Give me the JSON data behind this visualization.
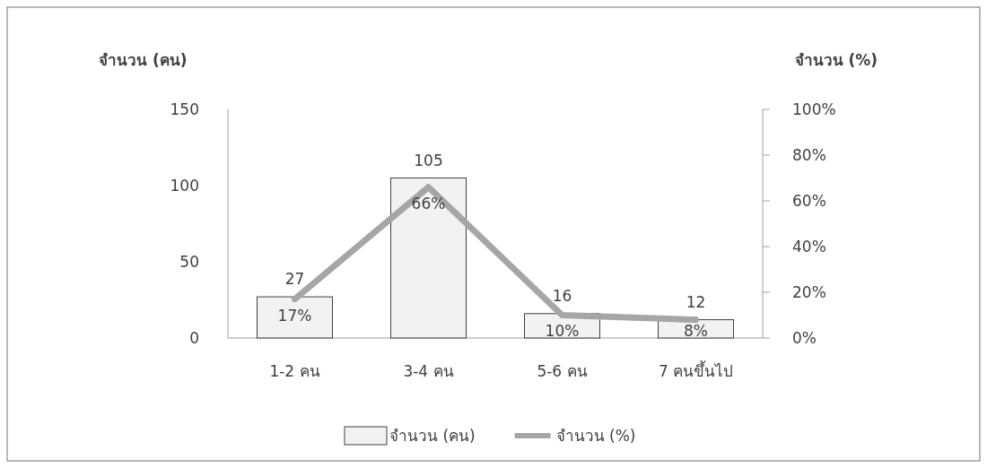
{
  "chart_data": {
    "type": "bar",
    "categories": [
      "1-2 คน",
      "3-4 คน",
      "5-6 คน",
      "7 คนขึ้นไป"
    ],
    "ylabel": "จำนวน (คน)",
    "y2label": "จำนวน (%)",
    "ylim": [
      0,
      150
    ],
    "yticks": [
      0,
      50,
      100,
      150
    ],
    "y2lim": [
      0,
      100
    ],
    "y2ticks": [
      {
        "value": 0,
        "label": "0%"
      },
      {
        "value": 20,
        "label": "20%"
      },
      {
        "value": 40,
        "label": "40%"
      },
      {
        "value": 60,
        "label": "60%"
      },
      {
        "value": 80,
        "label": "80%"
      },
      {
        "value": 100,
        "label": "100%"
      }
    ],
    "series": [
      {
        "name": "จำนวน (คน)",
        "color": "#f2f2f2",
        "values": [
          27,
          105,
          16,
          12
        ],
        "value_labels": [
          "27",
          "105",
          "16",
          "12"
        ]
      },
      {
        "name": "จำนวน (%)",
        "type": "line",
        "axis": "y2",
        "color": "#a6a6a6",
        "values": [
          17,
          66,
          10,
          8
        ],
        "value_labels": [
          "17%",
          "66%",
          "10%",
          "8%"
        ]
      }
    ],
    "legend": "bottom",
    "grid": false,
    "marker": "none",
    "line_style": "solid"
  }
}
